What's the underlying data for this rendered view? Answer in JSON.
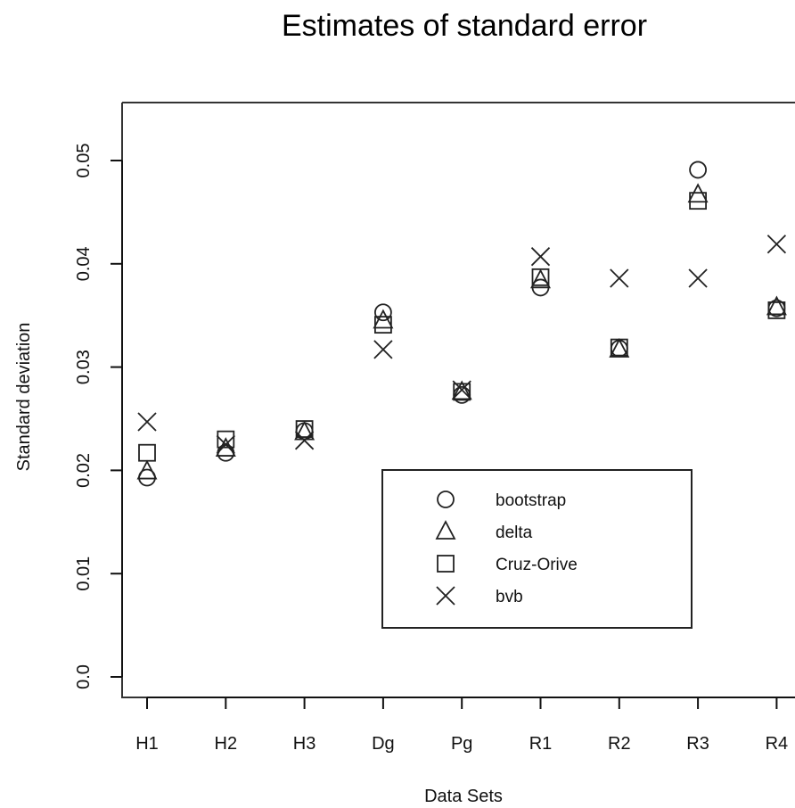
{
  "chart_data": {
    "type": "scatter",
    "title": "Estimates of standard error",
    "xlabel": "Data Sets",
    "ylabel": "Standard deviation",
    "categories": [
      "H1",
      "H2",
      "H3",
      "Dg",
      "Pg",
      "R1",
      "R2",
      "R3",
      "R4"
    ],
    "ylim": [
      0.0,
      0.05
    ],
    "yticks": [
      "0.0",
      "0.01",
      "0.02",
      "0.03",
      "0.04",
      "0.05"
    ],
    "yticks_values": [
      0.0,
      0.01,
      0.02,
      0.03,
      0.04,
      0.05
    ],
    "grid": false,
    "legend_position": "center-right",
    "series": [
      {
        "name": "bootstrap",
        "marker": "circle",
        "values": [
          0.0193,
          0.0217,
          0.0238,
          0.0353,
          0.0273,
          0.0377,
          0.0318,
          0.0491,
          0.0357
        ]
      },
      {
        "name": "delta",
        "marker": "triangle",
        "values": [
          0.0199,
          0.0221,
          0.0237,
          0.0345,
          0.0276,
          0.0384,
          0.0317,
          0.0467,
          0.0358
        ]
      },
      {
        "name": "Cruz-Orive",
        "marker": "square",
        "values": [
          0.0217,
          0.023,
          0.024,
          0.0341,
          0.0276,
          0.0387,
          0.0319,
          0.0461,
          0.0355
        ]
      },
      {
        "name": "bvb",
        "marker": "x",
        "values": [
          0.0247,
          0.0225,
          0.0229,
          0.0317,
          0.0278,
          0.0407,
          0.0386,
          0.0386,
          0.0419
        ]
      }
    ]
  }
}
